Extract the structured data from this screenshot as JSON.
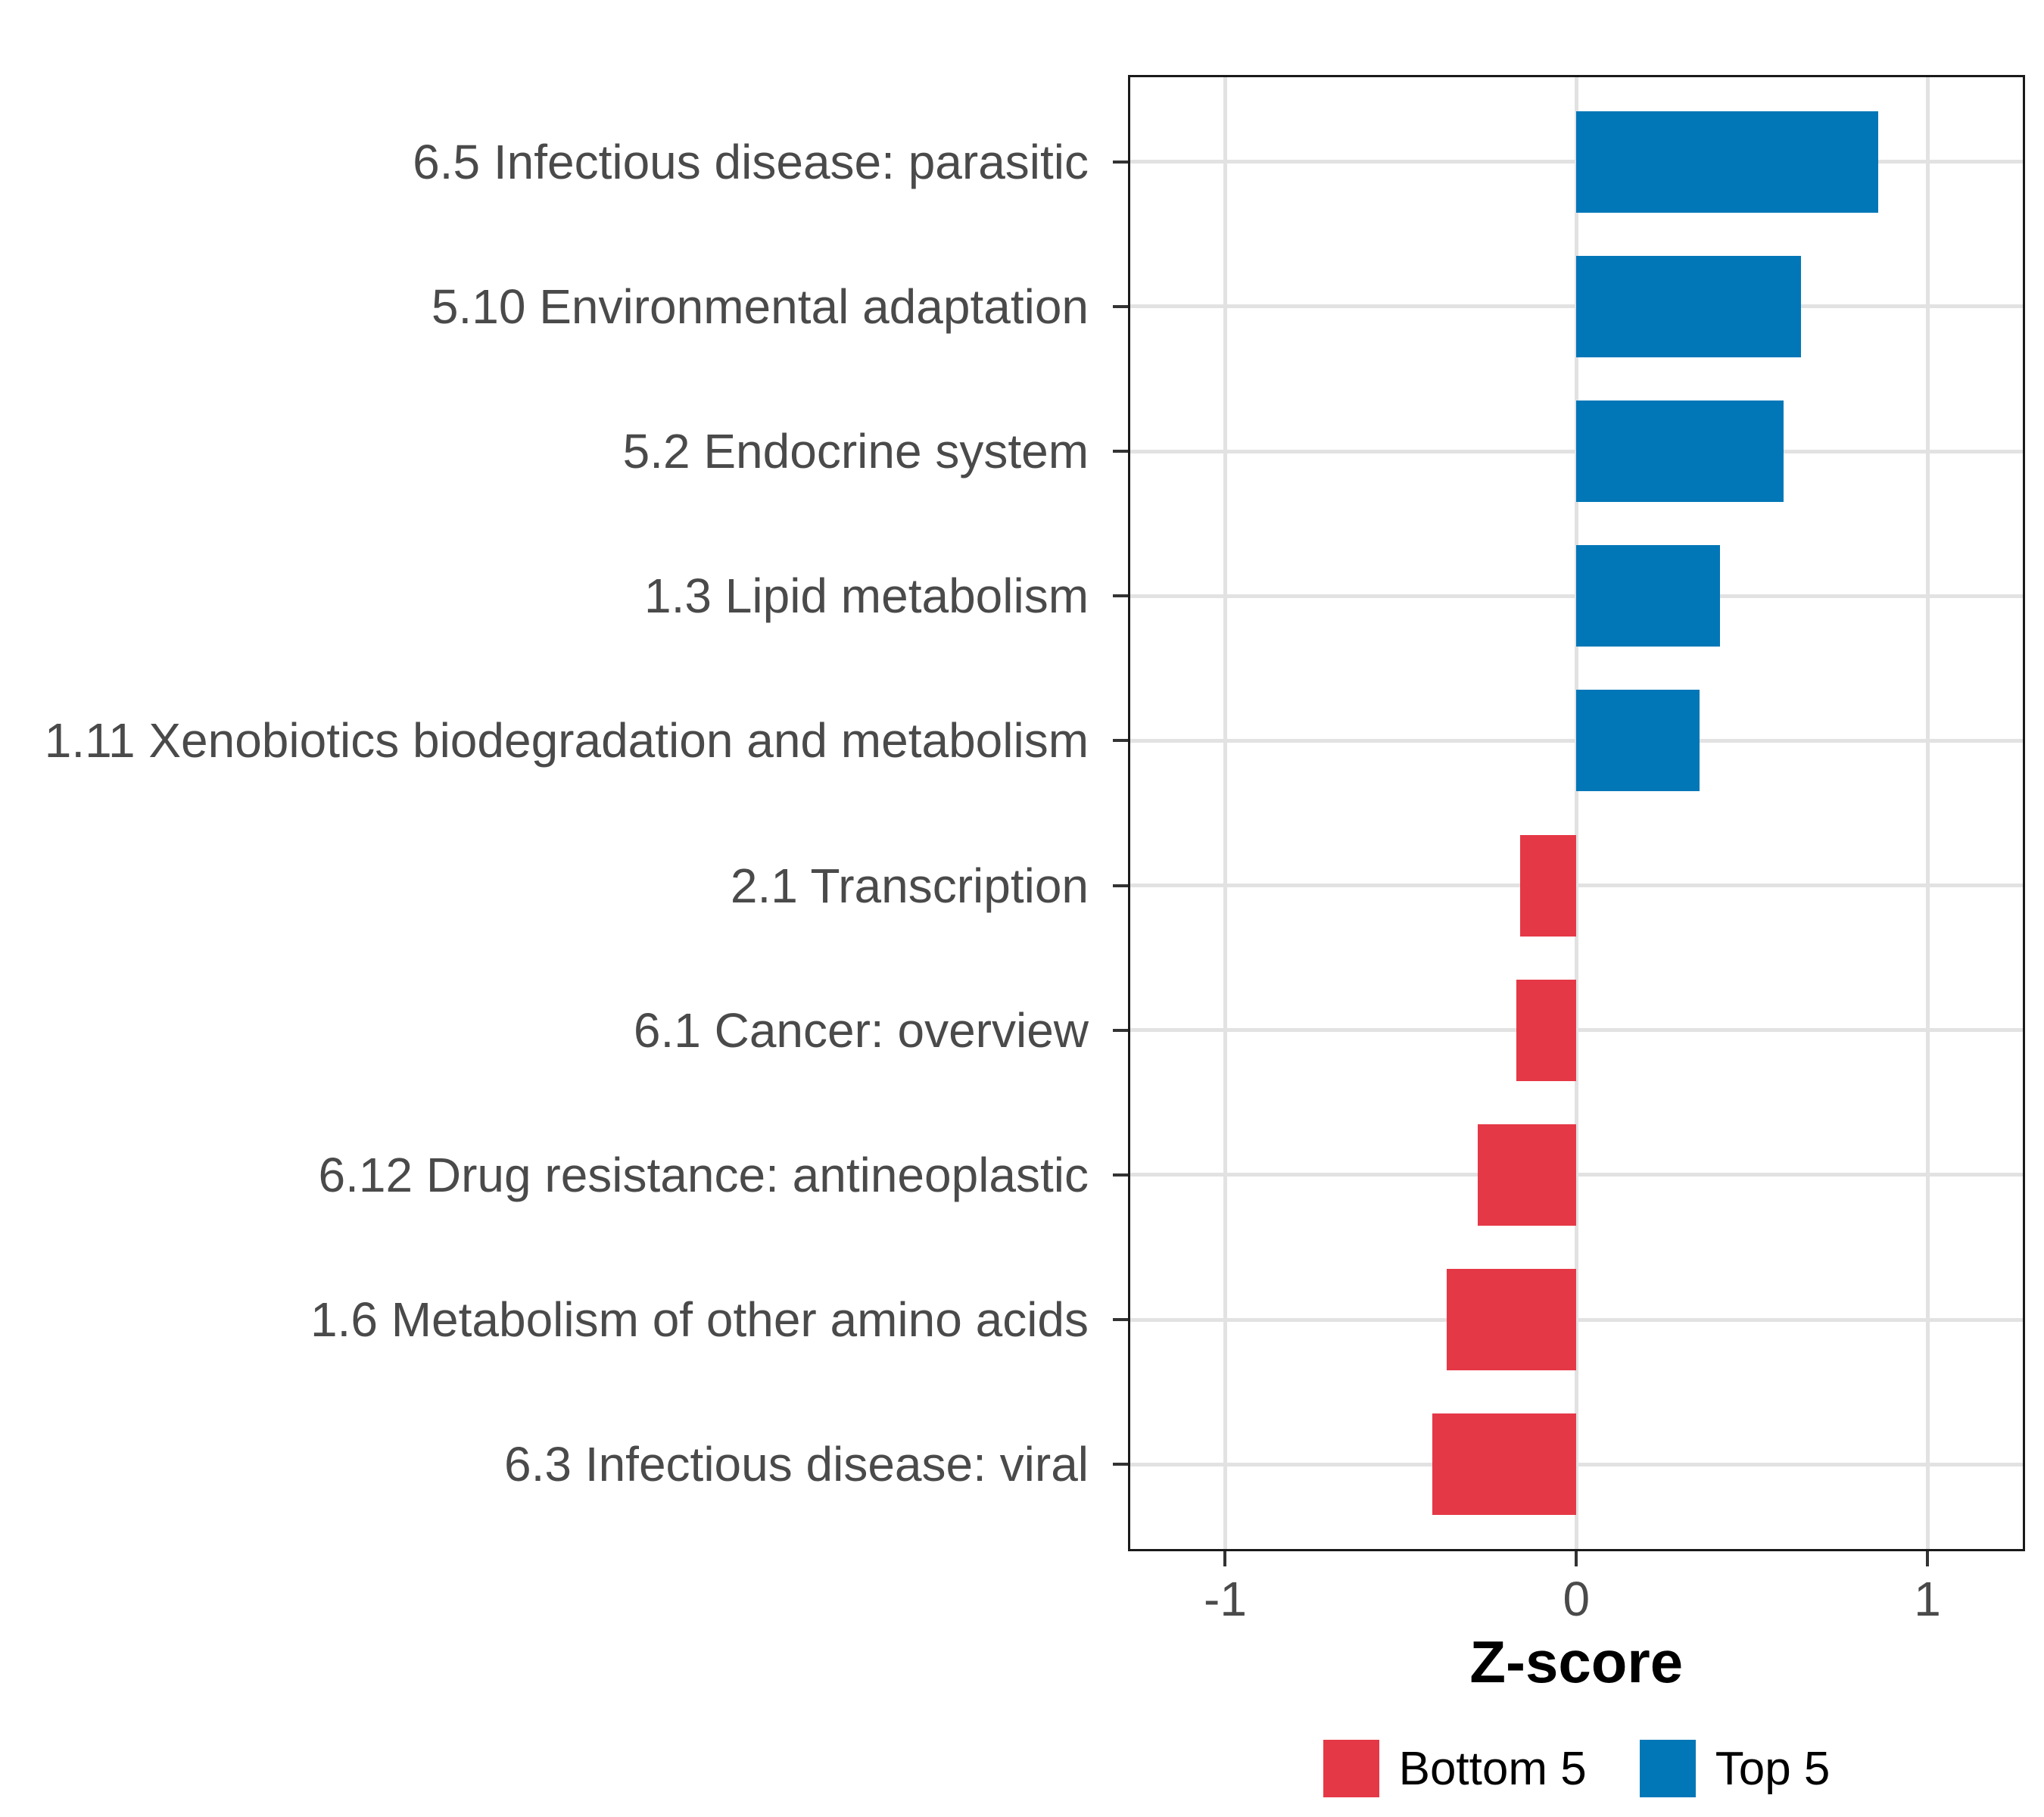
{
  "chart_data": {
    "type": "bar",
    "orientation": "horizontal",
    "title": "",
    "xlabel": "Z-score",
    "categories": [
      "6.5 Infectious disease: parasitic",
      "5.10 Environmental adaptation",
      "5.2 Endocrine system",
      "1.3 Lipid metabolism",
      "1.11 Xenobiotics biodegradation and metabolism",
      "2.1 Transcription",
      "6.1 Cancer: overview",
      "6.12 Drug resistance: antineoplastic",
      "1.6 Metabolism of other amino acids",
      "6.3 Infectious disease: viral"
    ],
    "values": [
      0.86,
      0.64,
      0.59,
      0.41,
      0.35,
      -0.16,
      -0.17,
      -0.28,
      -0.37,
      -0.41
    ],
    "groups": [
      "Top 5",
      "Top 5",
      "Top 5",
      "Top 5",
      "Top 5",
      "Bottom 5",
      "Bottom 5",
      "Bottom 5",
      "Bottom 5",
      "Bottom 5"
    ],
    "group_colors": {
      "Top 5": "#0277b7",
      "Bottom 5": "#e53846"
    },
    "x_ticks": [
      -1,
      0,
      1
    ],
    "x_tick_labels": [
      "-1",
      "0",
      "1"
    ],
    "xlim": [
      -1.277,
      1.278
    ],
    "grid": "vertical gridlines at x ticks, horizontal gridline at each category; no minor gridlines",
    "legend": {
      "position": "bottom",
      "entries": [
        {
          "label": "Bottom 5",
          "color": "#e53846"
        },
        {
          "label": "Top 5",
          "color": "#0277b7"
        }
      ]
    },
    "style_colors": {
      "grid": "#e2e2e2",
      "panel_border": "#1a1a1a",
      "axis_text": "#4a4a4a",
      "tick_mark": "#333333",
      "background": "#ffffff"
    }
  }
}
